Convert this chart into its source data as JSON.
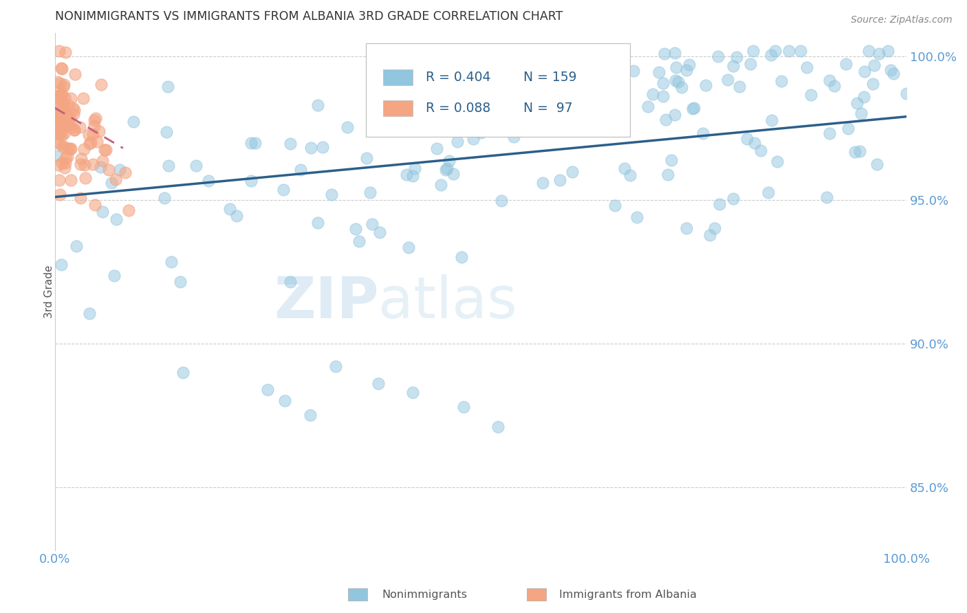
{
  "title": "NONIMMIGRANTS VS IMMIGRANTS FROM ALBANIA 3RD GRADE CORRELATION CHART",
  "source_text": "Source: ZipAtlas.com",
  "ylabel": "3rd Grade",
  "legend_entries": [
    "Nonimmigrants",
    "Immigrants from Albania"
  ],
  "r_nonimm": 0.404,
  "n_nonimm": 159,
  "r_imm": 0.088,
  "n_imm": 97,
  "blue_scatter_color": "#92c5de",
  "blue_edge_color": "#92c5de",
  "pink_scatter_color": "#f4a582",
  "pink_edge_color": "#f4a582",
  "blue_line_color": "#2c5f8a",
  "pink_line_color": "#c06080",
  "title_color": "#333333",
  "axis_label_color": "#5b9bd5",
  "r_value_color": "#2c5f8a",
  "background_color": "#ffffff",
  "grid_color": "#cccccc",
  "watermark_zip_color": "#c8dff0",
  "watermark_atlas_color": "#c8dff0",
  "xlim": [
    0.0,
    1.0
  ],
  "ylim": [
    0.828,
    1.008
  ],
  "yticks": [
    0.85,
    0.9,
    0.95,
    1.0
  ],
  "ytick_labels": [
    "85.0%",
    "90.0%",
    "95.0%",
    "100.0%"
  ],
  "xtick_labels": [
    "0.0%",
    "100.0%"
  ]
}
